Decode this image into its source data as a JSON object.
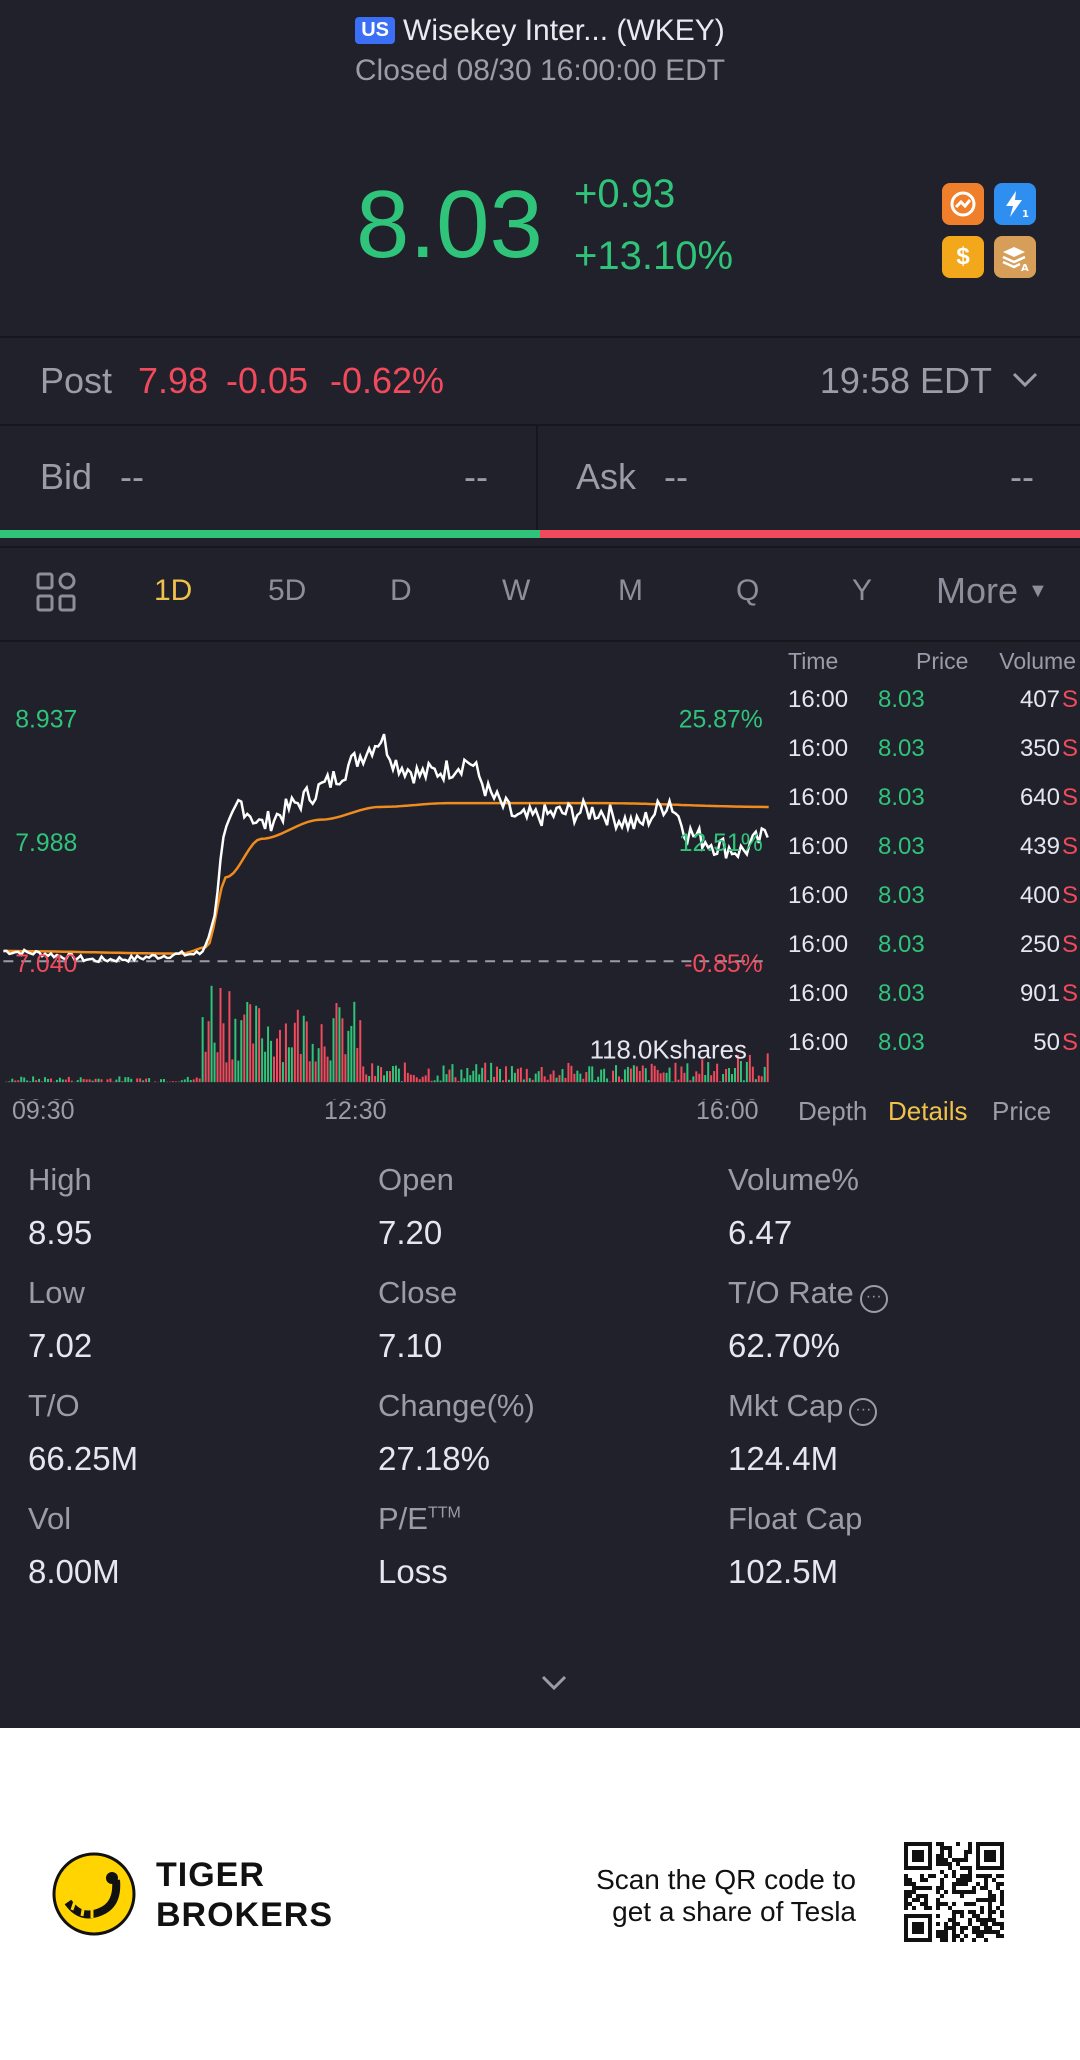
{
  "header": {
    "market_badge": "US",
    "title": "Wisekey Inter... (WKEY)",
    "status": "Closed 08/30 16:00:00 EDT"
  },
  "quote": {
    "price": "8.03",
    "change": "+0.93",
    "change_pct": "+13.10%",
    "feature_icons": [
      "orange-badge-icon",
      "lightning-level-1-icon",
      "dollar-icon",
      "stack-a-icon"
    ]
  },
  "post_market": {
    "label": "Post",
    "price": "7.98",
    "change": "-0.05",
    "change_pct": "-0.62%",
    "time": "19:58 EDT"
  },
  "bid_ask": {
    "bid_label": "Bid",
    "bid_value": "--",
    "bid_size": "--",
    "ask_label": "Ask",
    "ask_value": "--",
    "ask_size": "--"
  },
  "tabs": [
    "1D",
    "5D",
    "D",
    "W",
    "M",
    "Q",
    "Y",
    "More"
  ],
  "active_tab": "1D",
  "chart_data": {
    "type": "line",
    "series": [
      {
        "name": "price",
        "color": "#ffffff"
      },
      {
        "name": "average",
        "color": "#f08c1e"
      }
    ],
    "y_labels_left": [
      "8.937",
      "7.988",
      "7.040"
    ],
    "y_labels_right": [
      "25.87%",
      "12.51%",
      "-0.85%"
    ],
    "x_ticks": [
      "09:30",
      "12:30",
      "16:00"
    ],
    "ylim": [
      7.04,
      8.937
    ],
    "prev_close": 7.1,
    "volume_label": "118.0Kshares",
    "colors": {
      "up": "#2fc47a",
      "down": "#f04a5c",
      "avg": "#f08c1e"
    }
  },
  "trades": {
    "headers": {
      "time": "Time",
      "price": "Price",
      "volume": "Volume"
    },
    "rows": [
      {
        "time": "16:00",
        "price": "8.03",
        "volume": "407",
        "side": "S"
      },
      {
        "time": "16:00",
        "price": "8.03",
        "volume": "350",
        "side": "S"
      },
      {
        "time": "16:00",
        "price": "8.03",
        "volume": "640",
        "side": "S"
      },
      {
        "time": "16:00",
        "price": "8.03",
        "volume": "439",
        "side": "S"
      },
      {
        "time": "16:00",
        "price": "8.03",
        "volume": "400",
        "side": "S"
      },
      {
        "time": "16:00",
        "price": "8.03",
        "volume": "250",
        "side": "S"
      },
      {
        "time": "16:00",
        "price": "8.03",
        "volume": "901",
        "side": "S"
      },
      {
        "time": "16:00",
        "price": "8.03",
        "volume": "50",
        "side": "S"
      }
    ],
    "tabs": [
      "Depth",
      "Details",
      "Price"
    ],
    "active_tab": "Details"
  },
  "stats": [
    {
      "label": "High",
      "value": "8.95"
    },
    {
      "label": "Open",
      "value": "7.20"
    },
    {
      "label": "Volume%",
      "value": "6.47"
    },
    {
      "label": "Low",
      "value": "7.02"
    },
    {
      "label": "Close",
      "value": "7.10"
    },
    {
      "label": "T/O Rate",
      "value": "62.70%"
    },
    {
      "label": "T/O",
      "value": "66.25M"
    },
    {
      "label": "Change(%)",
      "value": "27.18%"
    },
    {
      "label": "Mkt Cap",
      "value": "124.4M"
    },
    {
      "label": "Vol",
      "value": "8.00M"
    },
    {
      "label": "P/E",
      "label_sup": "TTM",
      "value": "Loss"
    },
    {
      "label": "Float Cap",
      "value": "102.5M"
    }
  ],
  "footer": {
    "brand_line1": "TIGER",
    "brand_line2": "BROKERS",
    "scan_line1": "Scan the QR code to",
    "scan_line2": "get a share of Tesla"
  }
}
